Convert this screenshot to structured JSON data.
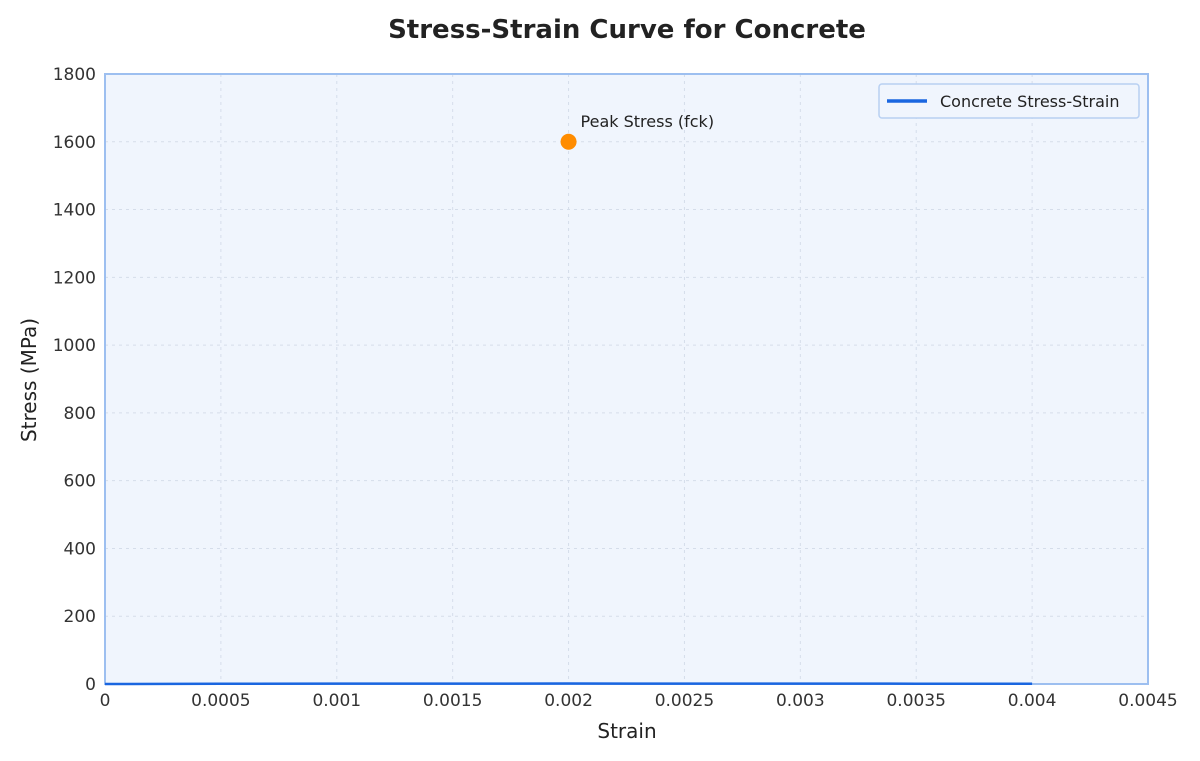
{
  "chart_data": {
    "type": "line",
    "title": "Stress-Strain Curve for Concrete",
    "xlabel": "Strain",
    "ylabel": "Stress (MPa)",
    "xlim": [
      0,
      0.0045
    ],
    "ylim": [
      0,
      1800
    ],
    "x_ticks": [
      0,
      0.0005,
      0.001,
      0.0015,
      0.002,
      0.0025,
      0.003,
      0.0035,
      0.004,
      0.0045
    ],
    "x_tick_labels": [
      "0",
      "0.0005",
      "0.001",
      "0.0015",
      "0.002",
      "0.0025",
      "0.003",
      "0.0035",
      "0.004",
      "0.0045"
    ],
    "y_ticks": [
      0,
      200,
      400,
      600,
      800,
      1000,
      1200,
      1400,
      1600,
      1800
    ],
    "y_tick_labels": [
      "0",
      "200",
      "400",
      "600",
      "800",
      "1000",
      "1200",
      "1400",
      "1600",
      "1800"
    ],
    "grid": true,
    "legend_position": "top-right",
    "series": [
      {
        "name": "Concrete Stress-Strain",
        "color": "#1a66e0",
        "x": [
          0,
          0.0005,
          0.001,
          0.0015,
          0.002,
          0.0025,
          0.003,
          0.0035,
          0.004
        ],
        "y": [
          0,
          0.55,
          0.95,
          1.2,
          1.3,
          1.25,
          1.12,
          0.9,
          0.6
        ]
      }
    ],
    "annotations": [
      {
        "label": "Peak Stress (fck)",
        "x": 0.002,
        "y": 1600,
        "color": "#ff8c00"
      }
    ],
    "colors": {
      "plot_background": "#f0f5fd",
      "plot_border": "#9dbff0",
      "grid": "#d5ddea",
      "line": "#1a66e0",
      "marker": "#ff8c00"
    }
  }
}
